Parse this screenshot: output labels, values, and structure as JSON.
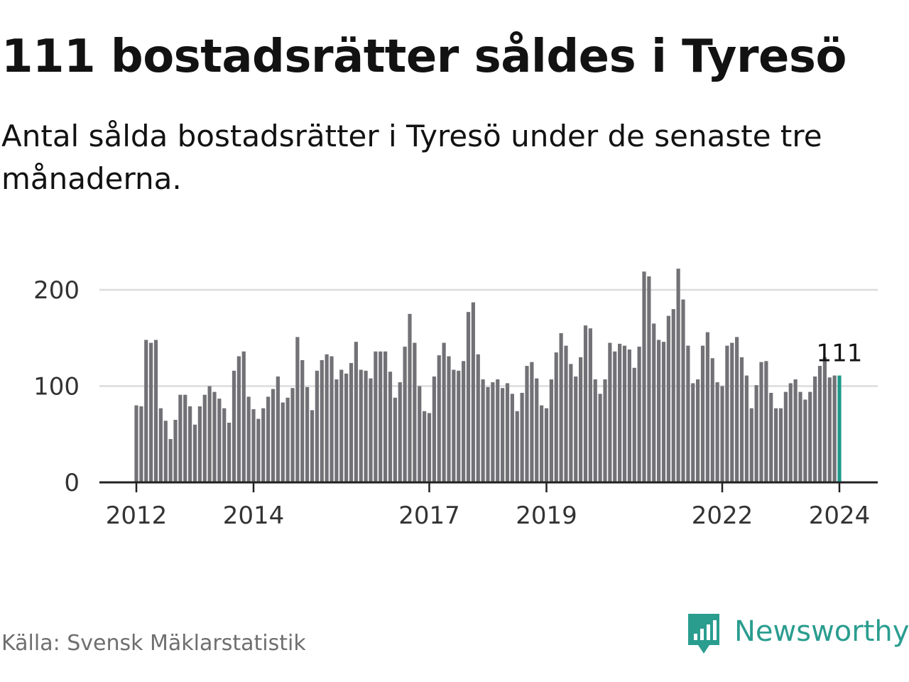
{
  "header": {
    "title": "111 bostadsrätter såldes i Tyresö",
    "subtitle": "Antal sålda bostadsrätter i Tyresö under de senaste tre månaderna."
  },
  "footer": {
    "source": "Källa: Svensk Mäklarstatistik",
    "brand": "Newsworthy",
    "brand_icon": "bar-chart-speech-bubble-icon"
  },
  "colors": {
    "bar": "#727176",
    "highlight": "#1f9a8c",
    "grid": "#dcdcdc",
    "axis": "#222222",
    "brand": "#2a9d8f"
  },
  "chart_data": {
    "type": "bar",
    "title": "111 bostadsrätter såldes i Tyresö",
    "xlabel": "",
    "ylabel": "",
    "ylim": [
      0,
      200
    ],
    "y_ticks": [
      0,
      100,
      200
    ],
    "grid": true,
    "x_tick_labels": [
      {
        "label": "2012",
        "index": 0
      },
      {
        "label": "2014",
        "index": 24
      },
      {
        "label": "2017",
        "index": 60
      },
      {
        "label": "2019",
        "index": 84
      },
      {
        "label": "2022",
        "index": 120
      },
      {
        "label": "2024",
        "index": 144
      }
    ],
    "highlight_index": 144,
    "highlight_label": "111",
    "start": "2012-01",
    "end": "2024-01",
    "frequency": "monthly",
    "values": [
      80,
      79,
      148,
      145,
      148,
      77,
      64,
      45,
      65,
      91,
      91,
      79,
      60,
      79,
      91,
      100,
      94,
      87,
      77,
      62,
      116,
      131,
      136,
      89,
      76,
      66,
      77,
      89,
      97,
      110,
      83,
      88,
      98,
      151,
      127,
      99,
      75,
      116,
      127,
      133,
      131,
      107,
      117,
      113,
      124,
      146,
      117,
      116,
      108,
      136,
      136,
      136,
      115,
      88,
      104,
      141,
      175,
      145,
      100,
      74,
      72,
      110,
      132,
      145,
      131,
      117,
      116,
      126,
      177,
      187,
      133,
      107,
      99,
      104,
      107,
      98,
      103,
      92,
      74,
      93,
      121,
      125,
      108,
      80,
      77,
      107,
      135,
      155,
      142,
      123,
      110,
      130,
      163,
      160,
      107,
      92,
      107,
      145,
      136,
      144,
      142,
      138,
      119,
      141,
      219,
      214,
      165,
      148,
      146,
      173,
      180,
      222,
      190,
      142,
      103,
      107,
      142,
      156,
      129,
      104,
      100,
      142,
      145,
      151,
      130,
      111,
      77,
      101,
      125,
      126,
      93,
      77,
      77,
      94,
      103,
      107,
      94,
      86,
      94,
      110,
      121,
      130,
      109,
      111,
      111
    ]
  }
}
